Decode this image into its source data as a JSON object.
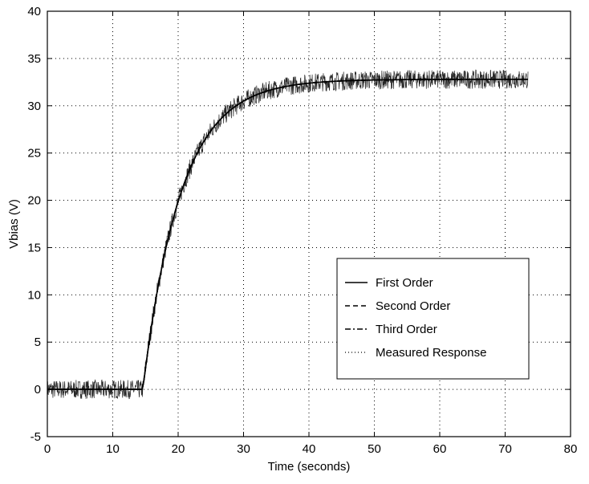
{
  "chart_data": {
    "type": "line",
    "title": "",
    "xlabel": "Time (seconds)",
    "ylabel": "Vbias (V)",
    "xlim": [
      0,
      80
    ],
    "ylim": [
      -5,
      40
    ],
    "xticks": [
      0,
      10,
      20,
      30,
      40,
      50,
      60,
      70,
      80
    ],
    "yticks": [
      -5,
      0,
      5,
      10,
      15,
      20,
      25,
      30,
      35,
      40
    ],
    "grid": true,
    "legend_position": "lower-right",
    "model": {
      "step_time": 14.6,
      "initial_value": 0,
      "final_value": 32.8,
      "time_constant": 5.8,
      "end_time": 73.5
    },
    "series": [
      {
        "name": "First Order",
        "style": "solid",
        "color": "#000000"
      },
      {
        "name": "Second Order",
        "style": "dashed",
        "color": "#000000"
      },
      {
        "name": "Third Order",
        "style": "dashdot",
        "color": "#000000"
      },
      {
        "name": "Measured Response",
        "style": "dotted",
        "color": "#000000"
      }
    ]
  }
}
